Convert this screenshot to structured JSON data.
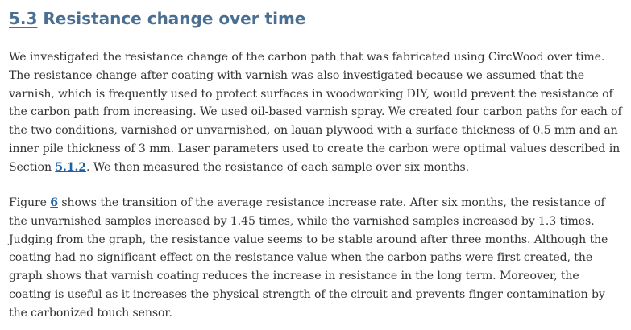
{
  "section": {
    "number": "5.3",
    "title": "Resistance change over time"
  },
  "paragraph1": {
    "text_before_ref": "We investigated the resistance change of the carbon path that was fabricated using CircWood over time. The resistance change after coating with varnish was also investigated because we assumed that the varnish, which is frequently used to protect surfaces in woodworking DIY, would prevent the resistance of the carbon path from increasing. We used oil-based varnish spray. We created four carbon paths for each of the two conditions, varnished or unvarnished, on lauan plywood with a surface thickness of 0.5 mm and an inner pile thickness of 3 mm. Laser parameters used to create the carbon were optimal values described in Section ",
    "section_ref": "5.1.2",
    "text_after_ref": ". We then measured the resistance of each sample over six months."
  },
  "paragraph2": {
    "text_before_ref": "Figure ",
    "figure_ref": "6",
    "text_after_ref": " shows the transition of the average resistance increase rate. After six months, the resistance of the unvarnished samples increased by 1.45 times, while the varnished samples increased by 1.3 times. Judging from the graph, the resistance value seems to be stable around after three months. Although the coating had no significant effect on the resistance value when the carbon paths were first created, the graph shows that varnish coating reduces the increase in resistance in the long term. Moreover, the coating is useful as it increases the physical strength of the circuit and prevents finger contamination by the carbonized touch sensor."
  },
  "colors": {
    "heading": "#4a6f93",
    "body_text": "#333333",
    "link": "#1f62a6"
  }
}
